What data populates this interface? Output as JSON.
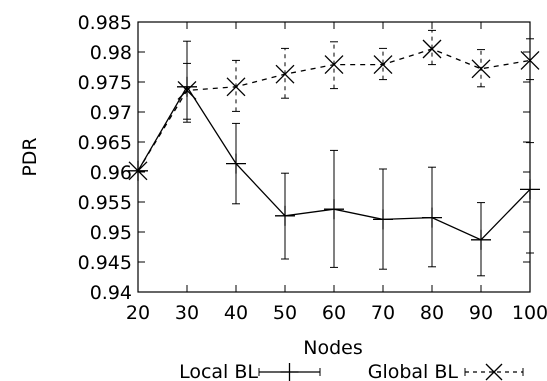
{
  "chart_data": {
    "type": "line",
    "xlabel": "Nodes",
    "ylabel": "PDR",
    "x": [
      20,
      30,
      40,
      50,
      60,
      70,
      80,
      90,
      100
    ],
    "xlim": [
      20,
      100
    ],
    "ylim": [
      0.94,
      0.985
    ],
    "x_ticks": [
      "20",
      "30",
      "40",
      "50",
      "60",
      "70",
      "80",
      "90",
      "100"
    ],
    "y_ticks": [
      "0.94",
      "0.945",
      "0.95",
      "0.955",
      "0.96",
      "0.965",
      "0.97",
      "0.975",
      "0.98",
      "0.985"
    ],
    "grid": false,
    "legend_position": "bottom",
    "series": [
      {
        "name": "Local BL",
        "line_style": "solid",
        "marker": "plus",
        "color": "#000000",
        "values": [
          0.9602,
          0.9742,
          0.9614,
          0.9527,
          0.9538,
          0.9521,
          0.9524,
          0.9487,
          0.9571
        ],
        "error_low": [
          0.9602,
          0.9683,
          0.9547,
          0.9455,
          0.9441,
          0.9438,
          0.9442,
          0.9427,
          0.9465
        ],
        "error_high": [
          0.9602,
          0.9818,
          0.9681,
          0.9598,
          0.9636,
          0.9605,
          0.9608,
          0.9549,
          0.9649
        ]
      },
      {
        "name": "Global BL",
        "line_style": "dashed",
        "marker": "x",
        "color": "#000000",
        "values": [
          0.9602,
          0.9736,
          0.9742,
          0.9763,
          0.9779,
          0.9779,
          0.9805,
          0.9772,
          0.9786
        ],
        "error_low": [
          0.9602,
          0.9688,
          0.9701,
          0.9723,
          0.9739,
          0.9754,
          0.9779,
          0.9742,
          0.9754
        ],
        "error_high": [
          0.9602,
          0.9781,
          0.9786,
          0.9806,
          0.9817,
          0.9806,
          0.9836,
          0.9804,
          0.9822
        ]
      }
    ]
  }
}
